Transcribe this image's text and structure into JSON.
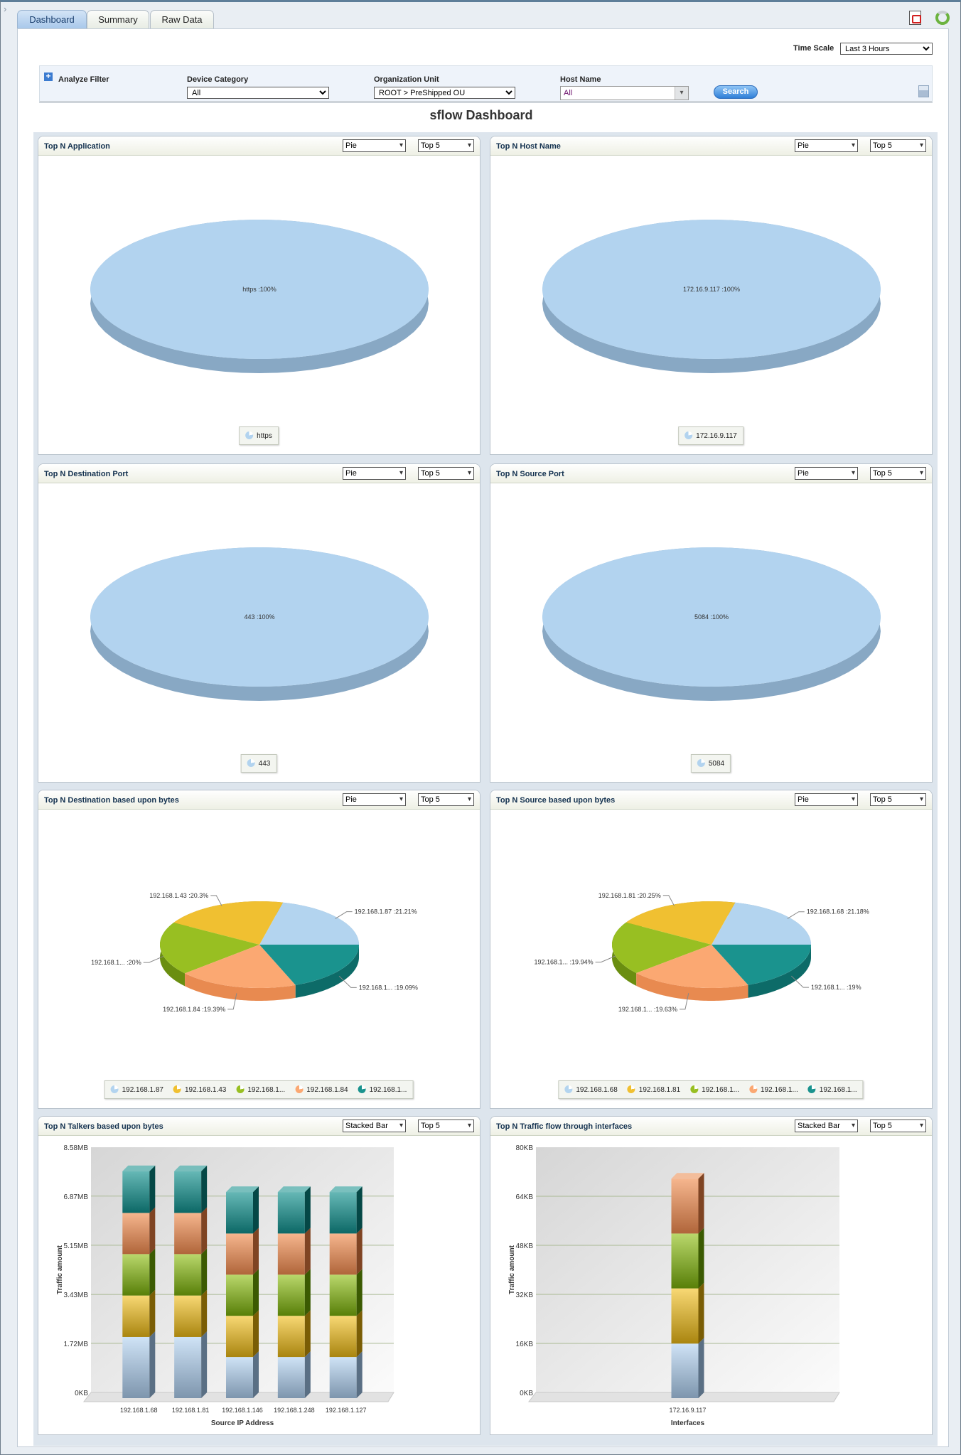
{
  "tabs": [
    {
      "label": "Dashboard"
    },
    {
      "label": "Summary"
    },
    {
      "label": "Raw Data"
    }
  ],
  "icons": {
    "pdf": "pdf-export-icon",
    "refresh": "refresh-icon",
    "save": "save-icon",
    "expand": "plus-icon"
  },
  "time_scale": {
    "label": "Time Scale",
    "value": "Last 3 Hours"
  },
  "filter": {
    "title": "Analyze Filter",
    "device_category": {
      "label": "Device Category",
      "value": "All"
    },
    "organization_unit": {
      "label": "Organization Unit",
      "value": "ROOT > PreShipped OU"
    },
    "host_name": {
      "label": "Host Name",
      "value": "All"
    },
    "search_label": "Search"
  },
  "page_title": "sflow Dashboard",
  "panels": [
    {
      "view": "Pie",
      "top": "Top 5"
    },
    {
      "view": "Pie",
      "top": "Top 5"
    },
    {
      "view": "Pie",
      "top": "Top 5"
    },
    {
      "view": "Pie",
      "top": "Top 5"
    },
    {
      "view": "Pie",
      "top": "Top 5"
    },
    {
      "view": "Pie",
      "top": "Top 5"
    },
    {
      "view": "Stacked Bar",
      "top": "Top 5"
    },
    {
      "view": "Stacked Bar",
      "top": "Top 5"
    }
  ],
  "chart_data": [
    {
      "type": "pie",
      "title": "Top N Application",
      "slices": [
        {
          "label": "https :100%",
          "legend": "https",
          "value": 100,
          "color": "#b2d3ef",
          "side": "#88a8c4"
        }
      ]
    },
    {
      "type": "pie",
      "title": "Top N Host Name",
      "slices": [
        {
          "label": "172.16.9.117 :100%",
          "legend": "172.16.9.117",
          "value": 100,
          "color": "#b2d3ef",
          "side": "#88a8c4"
        }
      ]
    },
    {
      "type": "pie",
      "title": "Top N Destination Port",
      "slices": [
        {
          "label": "443 :100%",
          "legend": "443",
          "value": 100,
          "color": "#b2d3ef",
          "side": "#88a8c4"
        }
      ]
    },
    {
      "type": "pie",
      "title": "Top N Source Port",
      "slices": [
        {
          "label": "5084 :100%",
          "legend": "5084",
          "value": 100,
          "color": "#b2d3ef",
          "side": "#88a8c4"
        }
      ]
    },
    {
      "type": "pie",
      "title": "Top N Destination based upon bytes",
      "slices": [
        {
          "label": "192.168.1.87 :21.21%",
          "legend": "192.168.1.87",
          "value": 21.21,
          "color": "#b3d4ef",
          "side": "#86a6c2"
        },
        {
          "label": "192.168.1.43 :20.3%",
          "legend": "192.168.1.43",
          "value": 20.3,
          "color": "#f0c031",
          "side": "#b88e10"
        },
        {
          "label": "192.168.1... :20%",
          "legend": "192.168.1...",
          "value": 20,
          "color": "#98bf22",
          "side": "#6a8e10"
        },
        {
          "label": "192.168.1.84 :19.39%",
          "legend": "192.168.1.84",
          "value": 19.39,
          "color": "#fba872",
          "side": "#e88a50"
        },
        {
          "label": "192.168.1... :19.09%",
          "legend": "192.168.1...",
          "value": 19.09,
          "color": "#1a938e",
          "side": "#0d6b68"
        }
      ]
    },
    {
      "type": "pie",
      "title": "Top N Source based upon bytes",
      "slices": [
        {
          "label": "192.168.1.68 :21.18%",
          "legend": "192.168.1.68",
          "value": 21.18,
          "color": "#b3d4ef",
          "side": "#86a6c2"
        },
        {
          "label": "192.168.1.81 :20.25%",
          "legend": "192.168.1.81",
          "value": 20.25,
          "color": "#f0c031",
          "side": "#b88e10"
        },
        {
          "label": "192.168.1... :19.94%",
          "legend": "192.168.1...",
          "value": 19.94,
          "color": "#98bf22",
          "side": "#6a8e10"
        },
        {
          "label": "192.168.1... :19.63%",
          "legend": "192.168.1...",
          "value": 19.63,
          "color": "#fba872",
          "side": "#e88a50"
        },
        {
          "label": "192.168.1... :19%",
          "legend": "192.168.1...",
          "value": 19,
          "color": "#1a938e",
          "side": "#0d6b68"
        }
      ]
    },
    {
      "type": "bar",
      "stacked": true,
      "title": "Top N Talkers based upon bytes",
      "xlabel": "Source IP Address",
      "ylabel": "Traffic amount",
      "unit": "MB",
      "categories": [
        "192.168.1.68",
        "192.168.1.81",
        "192.168.1.146",
        "192.168.1.248",
        "192.168.1.127"
      ],
      "ylim": [
        0,
        8.58
      ],
      "yticks": [
        0,
        1.72,
        3.43,
        5.15,
        6.87,
        8.58
      ],
      "ytick_labels": [
        "0KB",
        "1.72MB",
        "3.43MB",
        "5.15MB",
        "6.87MB",
        "8.58MB"
      ],
      "series": [
        {
          "values": [
            2.14,
            2.14,
            1.44,
            1.44,
            1.44
          ],
          "colors": [
            "#cfe3f6",
            "#7d95ad",
            "#5a6f84"
          ]
        },
        {
          "values": [
            1.45,
            1.45,
            1.44,
            1.44,
            1.44
          ],
          "colors": [
            "#f8d874",
            "#a9850f",
            "#7a5d05"
          ]
        },
        {
          "values": [
            1.45,
            1.45,
            1.44,
            1.44,
            1.44
          ],
          "colors": [
            "#bad86c",
            "#587f08",
            "#3b5a02"
          ]
        },
        {
          "values": [
            1.44,
            1.44,
            1.44,
            1.44,
            1.44
          ],
          "colors": [
            "#f6b68e",
            "#b0653a",
            "#7f4423"
          ]
        },
        {
          "values": [
            1.46,
            1.46,
            1.45,
            1.45,
            1.45
          ],
          "colors": [
            "#66b8b6",
            "#0c6866",
            "#054846"
          ]
        }
      ]
    },
    {
      "type": "bar",
      "stacked": true,
      "title": "Top N Traffic flow through interfaces",
      "xlabel": "Interfaces",
      "ylabel": "Traffic amount",
      "unit": "KB",
      "categories": [
        "172.16.9.117"
      ],
      "ylim": [
        0,
        80
      ],
      "yticks": [
        0,
        16,
        32,
        48,
        64,
        80
      ],
      "ytick_labels": [
        "0KB",
        "16KB",
        "32KB",
        "48KB",
        "64KB",
        "80KB"
      ],
      "series": [
        {
          "values": [
            17.8
          ],
          "colors": [
            "#cfe3f6",
            "#7d95ad",
            "#5a6f84"
          ]
        },
        {
          "values": [
            18.0
          ],
          "colors": [
            "#f8d874",
            "#a9850f",
            "#7a5d05"
          ]
        },
        {
          "values": [
            17.9
          ],
          "colors": [
            "#bad86c",
            "#587f08",
            "#3b5a02"
          ]
        },
        {
          "values": [
            17.9
          ],
          "colors": [
            "#f6b68e",
            "#b0653a",
            "#7f4423"
          ]
        }
      ]
    }
  ]
}
